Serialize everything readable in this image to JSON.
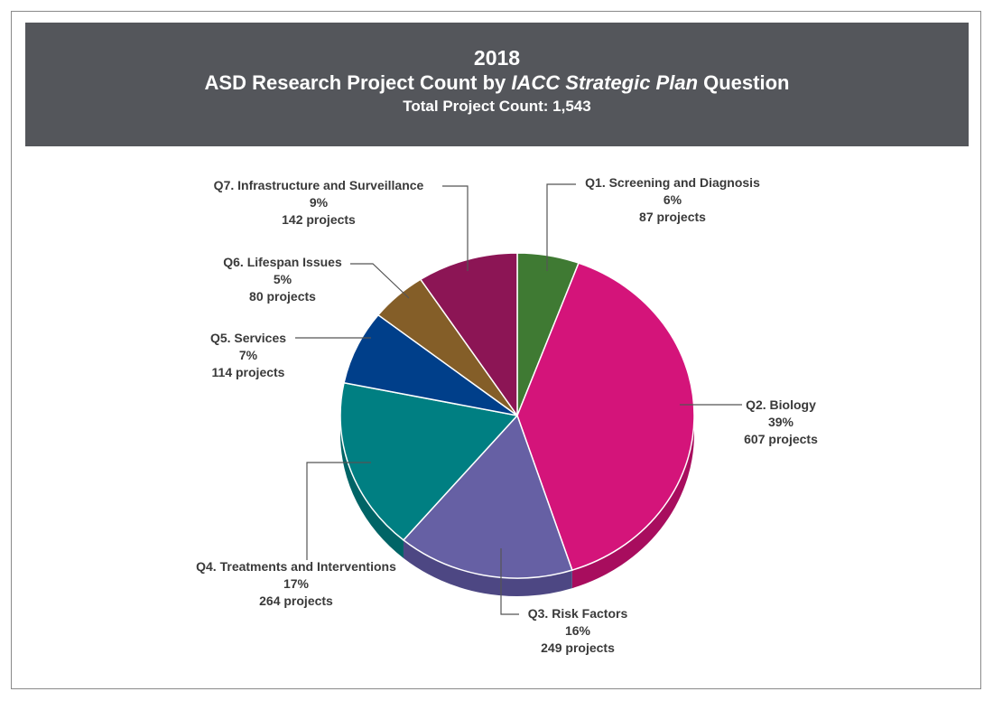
{
  "header": {
    "year": "2018",
    "title_pre": "ASD Research Project Count by ",
    "title_italic": "IACC Strategic Plan",
    "title_post": " Question",
    "subtitle": "Total Project Count: 1,543"
  },
  "colors": {
    "header_bg": "#54565b"
  },
  "chart_data": {
    "type": "pie",
    "style": "3d",
    "title": "2018 ASD Research Project Count by IACC Strategic Plan Question",
    "subtitle": "Total Project Count: 1,543",
    "total": 1543,
    "slices": [
      {
        "label": "Q1. Screening and Diagnosis",
        "percent": "6%",
        "count": "87 projects",
        "value": 87,
        "color": "#3f7a33",
        "side": "#2f5c26"
      },
      {
        "label": "Q2. Biology",
        "percent": "39%",
        "count": "607 projects",
        "value": 607,
        "color": "#d4147a",
        "side": "#a80d5e"
      },
      {
        "label": "Q3. Risk Factors",
        "percent": "16%",
        "count": "249 projects",
        "value": 249,
        "color": "#6660a4",
        "side": "#4d4783"
      },
      {
        "label": "Q4. Treatments and Interventions",
        "percent": "17%",
        "count": "264 projects",
        "value": 264,
        "color": "#007f82",
        "side": "#006466"
      },
      {
        "label": "Q5. Services",
        "percent": "7%",
        "count": "114 projects",
        "value": 114,
        "color": "#003f8a",
        "side": "#002f68"
      },
      {
        "label": "Q6. Lifespan Issues",
        "percent": "5%",
        "count": "80 projects",
        "value": 80,
        "color": "#845e28",
        "side": "#65471e"
      },
      {
        "label": "Q7. Infrastructure and Surveillance",
        "percent": "9%",
        "count": "142 projects",
        "value": 142,
        "color": "#8c1555",
        "side": "#6a1040"
      }
    ]
  }
}
